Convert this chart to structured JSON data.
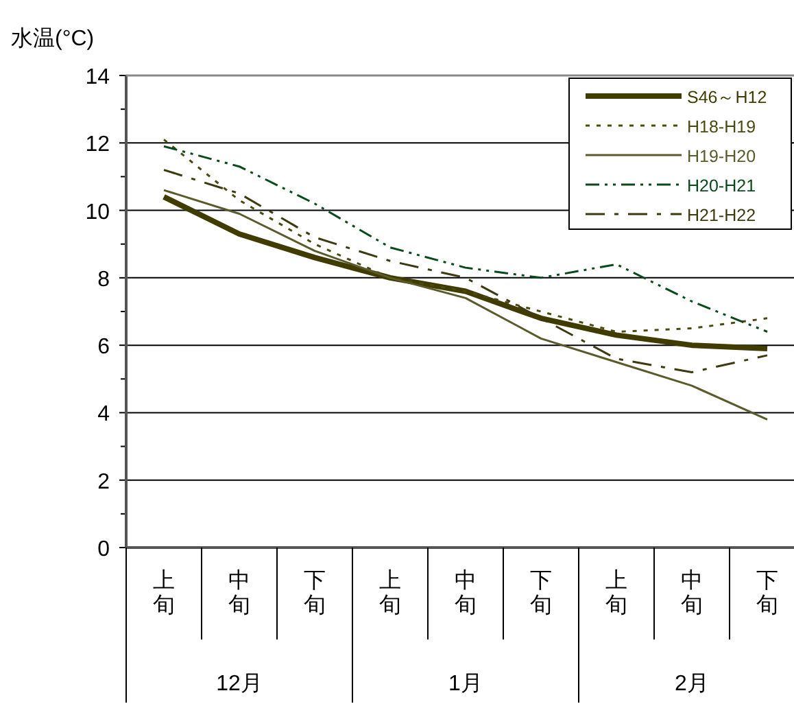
{
  "chart_data": {
    "type": "line",
    "ylabel": "水温(°C)",
    "categories": [
      "上旬",
      "中旬",
      "下旬",
      "上旬",
      "中旬",
      "下旬",
      "上旬",
      "中旬",
      "下旬"
    ],
    "annotations": [
      "12月",
      "1月",
      "2月"
    ],
    "series": [
      {
        "name": "S46～H12",
        "color": "#403c00",
        "line_style": "solid",
        "values": [
          10.4,
          9.3,
          8.6,
          8.0,
          7.6,
          6.8,
          6.3,
          6.0,
          5.9
        ]
      },
      {
        "name": "H18-H19",
        "color": "#4a4a10",
        "line_style": "dotted",
        "values": [
          12.1,
          10.3,
          9.0,
          8.0,
          7.6,
          7.0,
          6.4,
          6.5,
          6.8
        ]
      },
      {
        "name": "H19-H20",
        "color": "#5a5a2a",
        "line_style": "solid",
        "values": [
          10.6,
          9.9,
          8.8,
          8.0,
          7.4,
          6.2,
          5.5,
          4.8,
          3.8
        ]
      },
      {
        "name": "H20-H21",
        "color": "#0a4a1a",
        "line_style": "dashdotdot",
        "values": [
          11.9,
          11.3,
          10.2,
          8.9,
          8.3,
          8.0,
          8.4,
          7.3,
          6.4
        ]
      },
      {
        "name": "H21-H22",
        "color": "#3d3a10",
        "line_style": "dashdot",
        "values": [
          11.2,
          10.5,
          9.2,
          8.5,
          8.0,
          6.8,
          5.6,
          5.2,
          5.7
        ]
      }
    ],
    "ylim": [
      0,
      14
    ],
    "yticks": [
      0,
      2,
      4,
      6,
      8,
      10,
      12,
      14
    ],
    "grid": "y",
    "legend": "top right"
  }
}
